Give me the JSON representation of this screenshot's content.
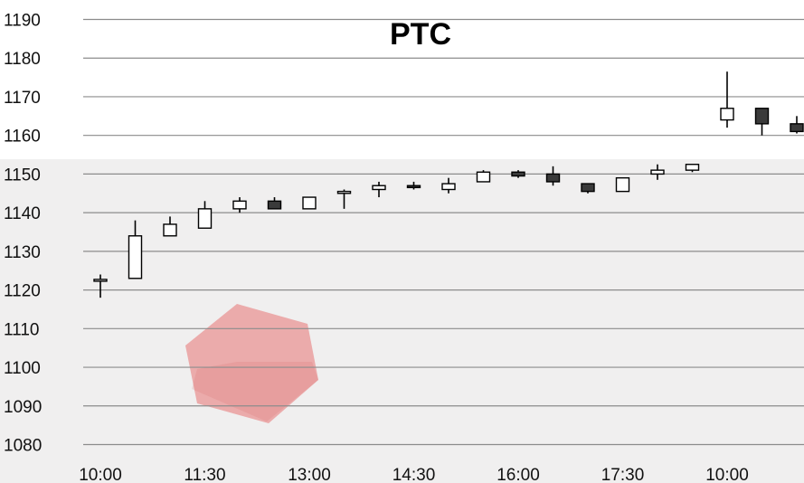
{
  "chart_data": {
    "type": "candlestick",
    "title": "PTC",
    "xlabel": "",
    "ylabel": "",
    "ylim": [
      1080,
      1190
    ],
    "yticks": [
      1080,
      1090,
      1100,
      1110,
      1120,
      1130,
      1140,
      1150,
      1160,
      1170,
      1180,
      1190
    ],
    "xtick_labels": [
      "10:00",
      "11:30",
      "13:00",
      "14:30",
      "16:00",
      "17:30",
      "10:00"
    ],
    "grid": true,
    "colors": {
      "up": "#ffffff",
      "down": "#3a3a3a",
      "wick": "#000000",
      "grid": "#8c8c8c"
    },
    "candles": [
      {
        "open": 1122.5,
        "high": 1124,
        "low": 1118,
        "close": 1122.5
      },
      {
        "open": 1123,
        "high": 1138,
        "low": 1123,
        "close": 1134
      },
      {
        "open": 1134,
        "high": 1139,
        "low": 1134,
        "close": 1137
      },
      {
        "open": 1136,
        "high": 1143,
        "low": 1136,
        "close": 1141
      },
      {
        "open": 1141,
        "high": 1144,
        "low": 1140,
        "close": 1143
      },
      {
        "open": 1143,
        "high": 1144,
        "low": 1141,
        "close": 1141
      },
      {
        "open": 1141,
        "high": 1144,
        "low": 1141,
        "close": 1144
      },
      {
        "open": 1145,
        "high": 1146,
        "low": 1141,
        "close": 1145.5
      },
      {
        "open": 1146,
        "high": 1148,
        "low": 1144,
        "close": 1147
      },
      {
        "open": 1147,
        "high": 1148,
        "low": 1146,
        "close": 1146.5
      },
      {
        "open": 1146,
        "high": 1149,
        "low": 1145,
        "close": 1147.5
      },
      {
        "open": 1148,
        "high": 1151,
        "low": 1148,
        "close": 1150.5
      },
      {
        "open": 1150.5,
        "high": 1151,
        "low": 1149,
        "close": 1149.5
      },
      {
        "open": 1150,
        "high": 1152,
        "low": 1147,
        "close": 1148
      },
      {
        "open": 1147.5,
        "high": 1147.5,
        "low": 1145,
        "close": 1145.5
      },
      {
        "open": 1145.5,
        "high": 1149,
        "low": 1145.5,
        "close": 1149
      },
      {
        "open": 1150,
        "high": 1152.5,
        "low": 1148.5,
        "close": 1151
      },
      {
        "open": 1151,
        "high": 1152.5,
        "low": 1150.5,
        "close": 1152.5
      },
      {
        "open": 1164,
        "high": 1176.5,
        "low": 1162,
        "close": 1167
      },
      {
        "open": 1167,
        "high": 1167,
        "low": 1160,
        "close": 1163
      },
      {
        "open": 1163,
        "high": 1165,
        "low": 1160.5,
        "close": 1161
      }
    ]
  }
}
